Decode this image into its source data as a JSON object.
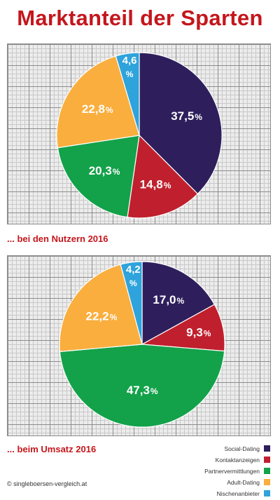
{
  "header": {
    "title": "Marktanteil der Sparten"
  },
  "captions": {
    "first": "... bei den Nutzern 2016",
    "second": "... beim Umsatz 2016"
  },
  "legend": [
    {
      "label": "Social-Dating",
      "color": "#2e1f5c"
    },
    {
      "label": "Kontaktanzeigen",
      "color": "#c0202d"
    },
    {
      "label": "Partnervermittlungen",
      "color": "#13a24a"
    },
    {
      "label": "Adult-Dating",
      "color": "#f9ae3e"
    },
    {
      "label": "Nischenanbieter",
      "color": "#2ea3dc"
    }
  ],
  "footer": {
    "copyright": "© singleboersen-vergleich.at"
  },
  "chart_data": [
    {
      "type": "pie",
      "title": "... bei den Nutzern 2016",
      "categories": [
        "Social-Dating",
        "Kontaktanzeigen",
        "Partnervermittlungen",
        "Adult-Dating",
        "Nischenanbieter"
      ],
      "values": [
        37.5,
        14.8,
        20.3,
        22.8,
        4.6
      ],
      "labels": [
        "37,5",
        "14,8",
        "20,3",
        "22,8",
        "4,6"
      ],
      "unit": "%",
      "colors": [
        "#2e1f5c",
        "#c0202d",
        "#13a24a",
        "#f9ae3e",
        "#2ea3dc"
      ]
    },
    {
      "type": "pie",
      "title": "... beim Umsatz 2016",
      "categories": [
        "Social-Dating",
        "Kontaktanzeigen",
        "Partnervermittlungen",
        "Adult-Dating",
        "Nischenanbieter"
      ],
      "values": [
        17.0,
        9.3,
        47.3,
        22.2,
        4.2
      ],
      "labels": [
        "17,0",
        "9,3",
        "47,3",
        "22,2",
        "4,2"
      ],
      "unit": "%",
      "colors": [
        "#2e1f5c",
        "#c0202d",
        "#13a24a",
        "#f9ae3e",
        "#2ea3dc"
      ]
    }
  ]
}
